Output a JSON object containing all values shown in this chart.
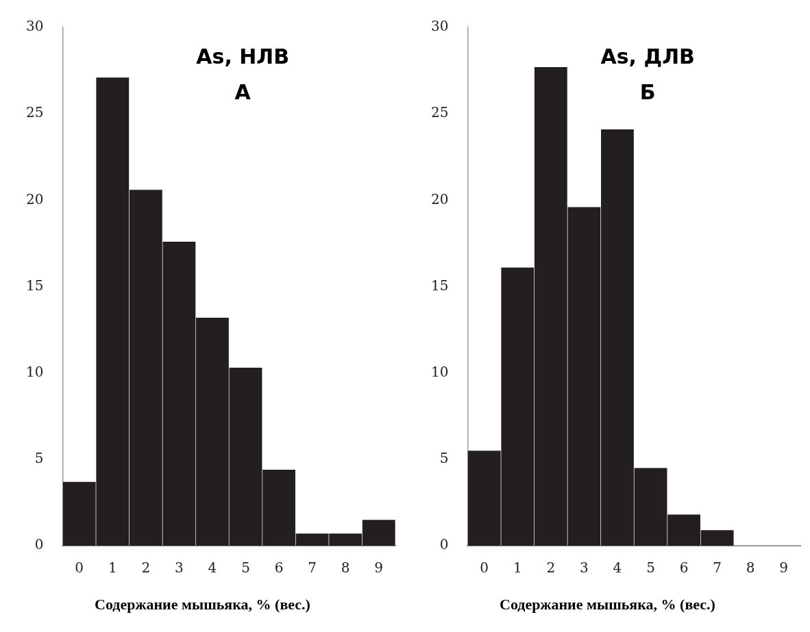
{
  "chart_data": [
    {
      "type": "bar",
      "title": "As, НЛВ",
      "subtitle": "А",
      "xlabel": "Содержание мышьяка, % (вес.)",
      "categories": [
        "0",
        "1",
        "2",
        "3",
        "4",
        "5",
        "6",
        "7",
        "8",
        "9"
      ],
      "values": [
        3.7,
        27.1,
        20.6,
        17.6,
        13.2,
        10.3,
        4.4,
        0.7,
        0.7,
        1.5
      ],
      "color": "#231f20",
      "ylim": [
        0,
        30
      ],
      "yticks": [
        0,
        5,
        10,
        15,
        20,
        25,
        30
      ],
      "grid": false,
      "legend": false
    },
    {
      "type": "bar",
      "title": "As, ДЛВ",
      "subtitle": "Б",
      "xlabel": "Содержание мышьяка, % (вес.)",
      "categories": [
        "0",
        "1",
        "2",
        "3",
        "4",
        "5",
        "6",
        "7",
        "8",
        "9"
      ],
      "values": [
        5.5,
        16.1,
        27.7,
        19.6,
        24.1,
        4.5,
        1.8,
        0.9,
        0,
        0
      ],
      "color": "#231f20",
      "ylim": [
        0,
        30
      ],
      "yticks": [
        0,
        5,
        10,
        15,
        20,
        25,
        30
      ],
      "grid": false,
      "legend": false
    }
  ]
}
